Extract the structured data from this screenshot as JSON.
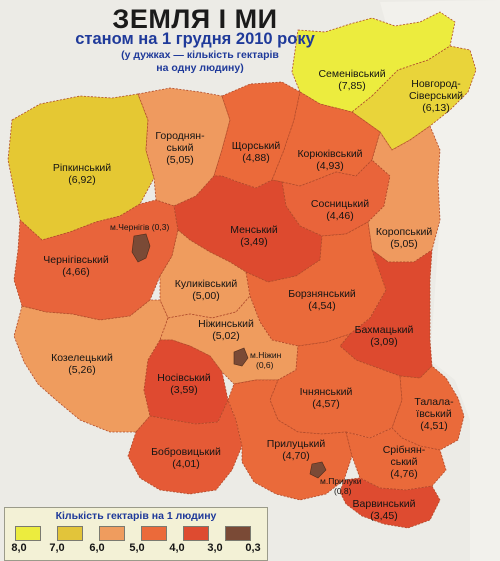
{
  "title": "ЗЕМЛЯ І МИ",
  "subtitle": "станом на 1 грудня 2010 року",
  "note_line1": "(у дужках — кількість гектарів",
  "note_line2": "на одну людину)",
  "districts": [
    {
      "id": "semenivskyi",
      "name": "Семенівський",
      "value": "(7,85)",
      "color": "#ecec3e"
    },
    {
      "id": "novhorod",
      "name": "Новгород-",
      "name2": "Сіверський",
      "value": "(6,13)",
      "color": "#e9d43a"
    },
    {
      "id": "ripkynskyi",
      "name": "Ріпкинський",
      "value": "(6,92)",
      "color": "#e5c833"
    },
    {
      "id": "horodnianskyi",
      "name": "Городнян-",
      "name2": "ський",
      "value": "(5,05)",
      "color": "#ef9a5f"
    },
    {
      "id": "shchorskyi",
      "name": "Щорський",
      "value": "(4,88)",
      "color": "#eb6a3a"
    },
    {
      "id": "koriukivskyi",
      "name": "Корюківський",
      "value": "(4,93)",
      "color": "#eb6a3a"
    },
    {
      "id": "sosnytskyi",
      "name": "Сосницький",
      "value": "(4,46)",
      "color": "#e9643a"
    },
    {
      "id": "koropskyi",
      "name": "Коропський",
      "value": "(5,05)",
      "color": "#ef9a5f"
    },
    {
      "id": "chernihivskyi",
      "name": "Чернігівський",
      "value": "(4,66)",
      "color": "#e8643b"
    },
    {
      "id": "menskyi",
      "name": "Менський",
      "value": "(3,49)",
      "color": "#dd4a2f"
    },
    {
      "id": "kulykivskyi",
      "name": "Куликівський",
      "value": "(5,00)",
      "color": "#ef9c5e"
    },
    {
      "id": "borznianskyi",
      "name": "Борзнянський",
      "value": "(4,54)",
      "color": "#ea6a3a"
    },
    {
      "id": "bakhmatskyi",
      "name": "Бахмацький",
      "value": "(3,09)",
      "color": "#dd4a2f"
    },
    {
      "id": "kozeletskyi",
      "name": "Козелецький",
      "value": "(5,26)",
      "color": "#ef9c5e"
    },
    {
      "id": "nizhynskyi",
      "name": "Ніжинський",
      "value": "(5,02)",
      "color": "#ef9c5e"
    },
    {
      "id": "nosivskyi",
      "name": "Носівський",
      "value": "(3,59)",
      "color": "#df4a30"
    },
    {
      "id": "ichnianskyi",
      "name": "Ічнянський",
      "value": "(4,57)",
      "color": "#ea6a3a"
    },
    {
      "id": "talalaivskyi",
      "name": "Талала-",
      "name2": "ївський",
      "value": "(4,51)",
      "color": "#ea6a3a"
    },
    {
      "id": "bobrovytskyi",
      "name": "Бобровицький",
      "value": "(4,01)",
      "color": "#e55a36"
    },
    {
      "id": "prylutskyi",
      "name": "Прилуцький",
      "value": "(4,70)",
      "color": "#ea6a3a"
    },
    {
      "id": "sribnianskyi",
      "name": "Срібнян-",
      "name2": "ський",
      "value": "(4,76)",
      "color": "#ea6a3a"
    },
    {
      "id": "varvynskyi",
      "name": "Варвинський",
      "value": "(3,45)",
      "color": "#de4b30"
    }
  ],
  "cities": [
    {
      "id": "chernihiv",
      "name": "м.Чернігів",
      "value": "(0,3)",
      "color": "#7a4a36"
    },
    {
      "id": "nizhyn",
      "name": "м.Ніжин",
      "value": "(0,6)",
      "color": "#7a4a36"
    },
    {
      "id": "pryluky",
      "name": "м.Прилуки",
      "value": "(0,8)",
      "color": "#7a4a36"
    }
  ],
  "legend": {
    "title": "Кількість гектарів на 1 людину",
    "ticks": [
      "8,0",
      "7,0",
      "6,0",
      "5,0",
      "4,0",
      "3,0",
      "0,3"
    ],
    "colors": [
      "#ecec3e",
      "#e2c43a",
      "#ef9c5e",
      "#eb6a3a",
      "#de4b30",
      "#7a4a36"
    ]
  }
}
